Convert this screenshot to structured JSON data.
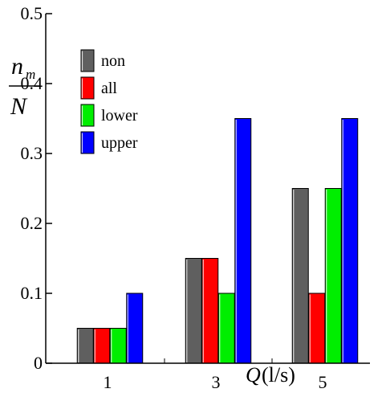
{
  "chart_data": {
    "type": "bar",
    "categories": [
      "1",
      "3",
      "5"
    ],
    "series": [
      {
        "name": "non",
        "color": "#5f5f5f",
        "values": [
          0.05,
          0.15,
          0.25
        ]
      },
      {
        "name": "all",
        "color": "#ff0000",
        "values": [
          0.05,
          0.15,
          0.1
        ]
      },
      {
        "name": "lower",
        "color": "#00ee00",
        "values": [
          0.05,
          0.1,
          0.25
        ]
      },
      {
        "name": "upper",
        "color": "#0000ff",
        "values": [
          0.1,
          0.35,
          0.35
        ]
      }
    ],
    "ylim": [
      0,
      0.5
    ],
    "yticks": [
      "0",
      "0.1",
      "0.2",
      "0.3",
      "0.4",
      "0.5"
    ],
    "ylabel": {
      "numerator": "n",
      "subscript": "m",
      "denominator": "N"
    },
    "xlabel": {
      "variable": "Q",
      "unit": "(l/s)"
    },
    "legend": "top-left",
    "grid": false
  }
}
